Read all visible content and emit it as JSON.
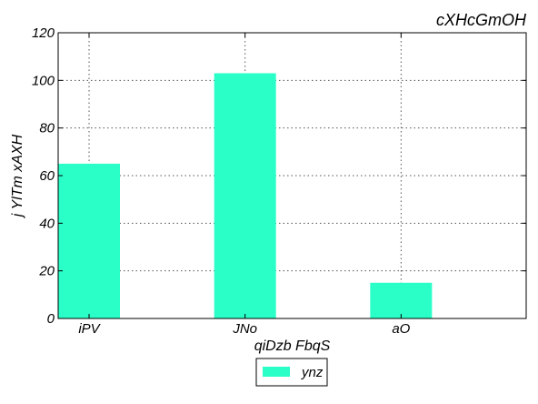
{
  "chart_data": {
    "type": "bar",
    "title": "cXHcGmOH",
    "xlabel": "qiDzb FbqS",
    "ylabel": "j YlTm xAXH",
    "categories": [
      "iPV",
      "JNo",
      "aO"
    ],
    "series": [
      {
        "name": "ynz",
        "values": [
          65,
          103,
          15
        ]
      }
    ],
    "ylim": [
      0,
      120
    ],
    "yticks": [
      0,
      20,
      40,
      60,
      80,
      100,
      120
    ],
    "grid": true,
    "legend_position": "bottom-center",
    "colors": {
      "bar": "#2affc8",
      "frame": "#000000",
      "grid": "#555555"
    }
  }
}
